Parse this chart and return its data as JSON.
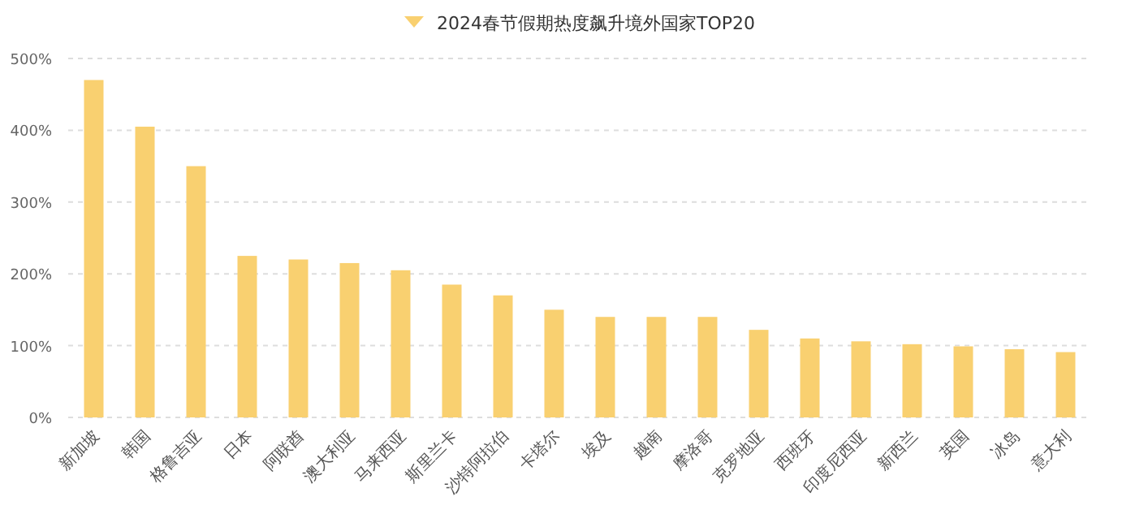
{
  "chart_data": {
    "type": "bar",
    "categories": [
      "新加坡",
      "韩国",
      "格鲁吉亚",
      "日本",
      "阿联酋",
      "澳大利亚",
      "马来西亚",
      "斯里兰卡",
      "沙特阿拉伯",
      "卡塔尔",
      "埃及",
      "越南",
      "摩洛哥",
      "克罗地亚",
      "西班牙",
      "印度尼西亚",
      "新西兰",
      "英国",
      "冰岛",
      "意大利"
    ],
    "series": [
      {
        "name": "2024春节假期热度飙升境外国家TOP20",
        "color": "#f9d070",
        "values": [
          470,
          405,
          350,
          225,
          220,
          215,
          205,
          185,
          170,
          150,
          140,
          140,
          140,
          122,
          110,
          106,
          102,
          99,
          95,
          91
        ]
      }
    ],
    "ylim": [
      0,
      500
    ],
    "yticks": [
      {
        "value": 0,
        "label": "0%"
      },
      {
        "value": 100,
        "label": "100%"
      },
      {
        "value": 200,
        "label": "200%"
      },
      {
        "value": 300,
        "label": "300%"
      },
      {
        "value": 400,
        "label": "400%"
      },
      {
        "value": 500,
        "label": "500%"
      }
    ],
    "grid": "y",
    "legend": "top"
  }
}
